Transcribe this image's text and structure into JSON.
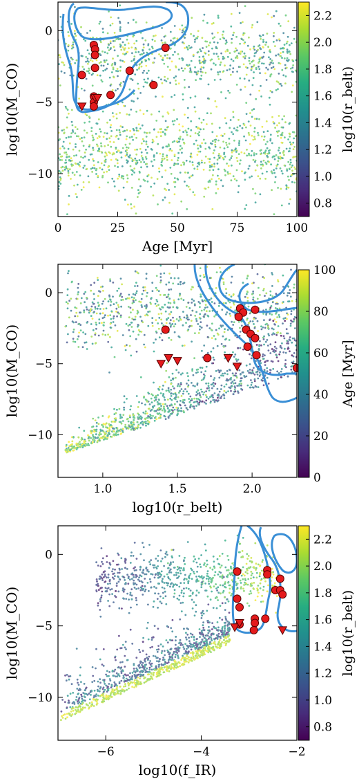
{
  "chart_data": [
    {
      "type": "scatter",
      "xlabel": "Age [Myr]",
      "ylabel": "log10(M_CO)",
      "xlim": [
        0,
        100
      ],
      "ylim": [
        -13,
        2
      ],
      "xticks": [
        "0",
        "25",
        "50",
        "75",
        "100"
      ],
      "yticks": [
        "0",
        "−5",
        "−10"
      ],
      "colorbar": {
        "label": "log10(r_belt)",
        "range": [
          0.7,
          2.3
        ],
        "ticks": [
          "2.2",
          "2.0",
          "1.8",
          "1.6",
          "1.4",
          "1.2",
          "1.0",
          "0.8"
        ]
      },
      "detections": [
        [
          10,
          -3.1
        ],
        [
          15,
          -1.0
        ],
        [
          15.5,
          -1.3
        ],
        [
          15.5,
          -1.7
        ],
        [
          15.5,
          -2.6
        ],
        [
          30,
          -2.8
        ],
        [
          45,
          -1.2
        ],
        [
          40,
          -3.8
        ],
        [
          22,
          -4.5
        ],
        [
          15,
          -4.6
        ],
        [
          15,
          -5.0
        ],
        [
          15,
          -5.3
        ]
      ],
      "upper_limits": [
        [
          10,
          -5.3
        ],
        [
          15.5,
          -4.7
        ],
        [
          16.5,
          -4.7
        ]
      ]
    },
    {
      "type": "scatter",
      "xlabel": "log10(r_belt)",
      "ylabel": "log10(M_CO)",
      "xlim": [
        0.7,
        2.3
      ],
      "ylim": [
        -13,
        2
      ],
      "xticks": [
        "1.0",
        "1.5",
        "2.0"
      ],
      "yticks": [
        "0",
        "−5",
        "−10"
      ],
      "colorbar": {
        "label": "Age [Myr]",
        "range": [
          0,
          100
        ],
        "ticks": [
          "100",
          "80",
          "60",
          "40",
          "20",
          "0"
        ]
      },
      "detections": [
        [
          1.42,
          -2.6
        ],
        [
          1.92,
          -1.1
        ],
        [
          1.94,
          -1.4
        ],
        [
          1.91,
          -1.7
        ],
        [
          2.02,
          -1.2
        ],
        [
          1.96,
          -2.6
        ],
        [
          1.99,
          -2.9
        ],
        [
          2.02,
          -3.2
        ],
        [
          1.97,
          -3.8
        ],
        [
          2.03,
          -4.4
        ],
        [
          1.7,
          -4.6
        ],
        [
          2.3,
          -5.3
        ]
      ],
      "upper_limits": [
        [
          1.39,
          -5.0
        ],
        [
          1.44,
          -4.6
        ],
        [
          1.5,
          -4.8
        ],
        [
          1.84,
          -4.6
        ],
        [
          1.9,
          -5.2
        ]
      ]
    },
    {
      "type": "scatter",
      "xlabel": "log10(f_IR)",
      "ylabel": "log10(M_CO)",
      "xlim": [
        -7,
        -2
      ],
      "ylim": [
        -13,
        2
      ],
      "xticks": [
        "−6",
        "−4",
        "−2"
      ],
      "yticks": [
        "0",
        "−5",
        "−10"
      ],
      "colorbar": {
        "label": "log10(r_belt)",
        "range": [
          0.7,
          2.3
        ],
        "ticks": [
          "2.2",
          "2.0",
          "1.8",
          "1.6",
          "1.4",
          "1.2",
          "1.0",
          "0.8"
        ]
      },
      "detections": [
        [
          -3.25,
          -1.2
        ],
        [
          -2.62,
          -1.1
        ],
        [
          -2.62,
          -1.4
        ],
        [
          -2.35,
          -1.7
        ],
        [
          -2.45,
          -2.5
        ],
        [
          -2.35,
          -2.5
        ],
        [
          -2.3,
          -2.8
        ],
        [
          -3.25,
          -3.1
        ],
        [
          -3.2,
          -3.7
        ],
        [
          -2.88,
          -4.5
        ],
        [
          -2.66,
          -4.5
        ],
        [
          -3.2,
          -4.9
        ],
        [
          -2.88,
          -4.8
        ],
        [
          -2.9,
          -5.3
        ]
      ],
      "upper_limits": [
        [
          -3.3,
          -5.1
        ],
        [
          -3.2,
          -4.8
        ],
        [
          -2.3,
          -5.3
        ]
      ]
    }
  ]
}
